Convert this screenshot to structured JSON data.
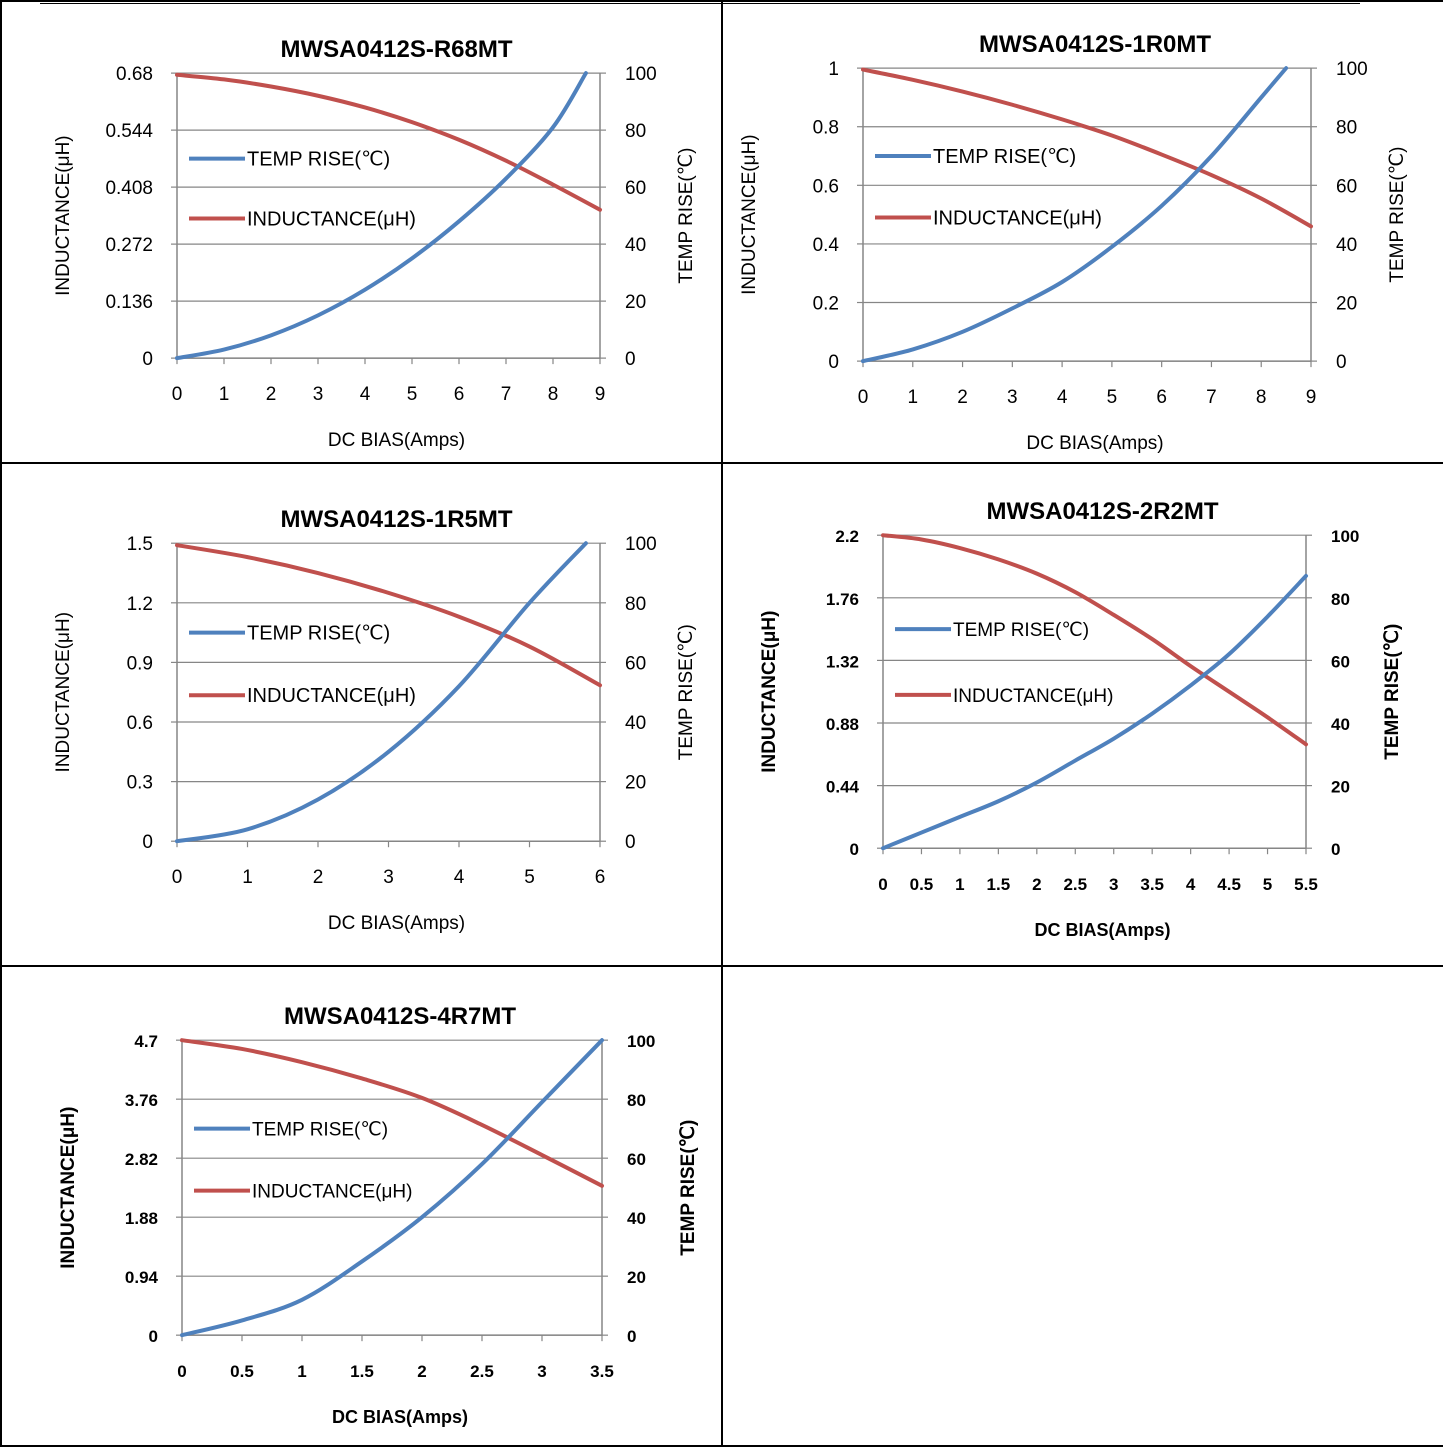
{
  "charts": [
    {
      "title": "MWSA0412S-R68MT",
      "xlabel": "DC  BIAS(Amps)",
      "ylabel_left": "INDUCTANCE(μH)",
      "ylabel_right": "TEMP RISE(℃)",
      "bold_axis_labels": false,
      "x_ticks": [
        "0",
        "1",
        "2",
        "3",
        "4",
        "5",
        "6",
        "7",
        "8",
        "9"
      ],
      "x_range": [
        0,
        9
      ],
      "y_left_ticks": [
        "0",
        "0.136",
        "0.272",
        "0.408",
        "0.544",
        "0.68"
      ],
      "y_left_range": [
        0,
        0.68
      ],
      "y_right_ticks": [
        "0",
        "20",
        "40",
        "60",
        "80",
        "100"
      ],
      "y_right_range": [
        0,
        100
      ],
      "legend": [
        {
          "label": "TEMP RISE(℃)",
          "color": "#4f81bd"
        },
        {
          "label": "INDUCTANCE(μH)",
          "color": "#c0504d"
        }
      ]
    },
    {
      "title": "MWSA0412S-1R0MT",
      "xlabel": "DC  BIAS(Amps)",
      "ylabel_left": "INDUCTANCE(μH)",
      "ylabel_right": "TEMP RISE(℃)",
      "bold_axis_labels": false,
      "x_ticks": [
        "0",
        "1",
        "2",
        "3",
        "4",
        "5",
        "6",
        "7",
        "8",
        "9"
      ],
      "x_range": [
        0,
        9
      ],
      "y_left_ticks": [
        "0",
        "0.2",
        "0.4",
        "0.6",
        "0.8",
        "1"
      ],
      "y_left_range": [
        0,
        1
      ],
      "y_right_ticks": [
        "0",
        "20",
        "40",
        "60",
        "80",
        "100"
      ],
      "y_right_range": [
        0,
        100
      ],
      "legend": [
        {
          "label": "TEMP RISE(℃)",
          "color": "#4f81bd"
        },
        {
          "label": "INDUCTANCE(μH)",
          "color": "#c0504d"
        }
      ]
    },
    {
      "title": "MWSA0412S-1R5MT",
      "xlabel": "DC  BIAS(Amps)",
      "ylabel_left": "INDUCTANCE(μH)",
      "ylabel_right": "TEMP RISE(℃)",
      "bold_axis_labels": false,
      "x_ticks": [
        "0",
        "1",
        "2",
        "3",
        "4",
        "5",
        "6"
      ],
      "x_range": [
        0,
        6
      ],
      "y_left_ticks": [
        "0",
        "0.3",
        "0.6",
        "0.9",
        "1.2",
        "1.5"
      ],
      "y_left_range": [
        0,
        1.5
      ],
      "y_right_ticks": [
        "0",
        "20",
        "40",
        "60",
        "80",
        "100"
      ],
      "y_right_range": [
        0,
        100
      ],
      "legend": [
        {
          "label": "TEMP RISE(℃)",
          "color": "#4f81bd"
        },
        {
          "label": "INDUCTANCE(μH)",
          "color": "#c0504d"
        }
      ]
    },
    {
      "title": "MWSA0412S-2R2MT",
      "xlabel": "DC  BIAS(Amps)",
      "ylabel_left": "INDUCTANCE(μH)",
      "ylabel_right": "TEMP RISE(℃)",
      "bold_axis_labels": true,
      "x_ticks": [
        "0",
        "0.5",
        "1",
        "1.5",
        "2",
        "2.5",
        "3",
        "3.5",
        "4",
        "4.5",
        "5",
        "5.5"
      ],
      "x_range": [
        0,
        5.5
      ],
      "y_left_ticks": [
        "0",
        "0.44",
        "0.88",
        "1.32",
        "1.76",
        "2.2"
      ],
      "y_left_range": [
        0,
        2.2
      ],
      "y_right_ticks": [
        "0",
        "20",
        "40",
        "60",
        "80",
        "100"
      ],
      "y_right_range": [
        0,
        100
      ],
      "legend": [
        {
          "label": "TEMP RISE(℃)",
          "color": "#4f81bd"
        },
        {
          "label": "INDUCTANCE(μH)",
          "color": "#c0504d"
        }
      ]
    },
    {
      "title": "MWSA0412S-4R7MT",
      "xlabel": "DC  BIAS(Amps)",
      "ylabel_left": "INDUCTANCE(μH)",
      "ylabel_right": "TEMP RISE(℃)",
      "bold_axis_labels": true,
      "x_ticks": [
        "0",
        "0.5",
        "1",
        "1.5",
        "2",
        "2.5",
        "3",
        "3.5"
      ],
      "x_range": [
        0,
        3.5
      ],
      "y_left_ticks": [
        "0",
        "0.94",
        "1.88",
        "2.82",
        "3.76",
        "4.7"
      ],
      "y_left_range": [
        0,
        4.7
      ],
      "y_right_ticks": [
        "0",
        "20",
        "40",
        "60",
        "80",
        "100"
      ],
      "y_right_range": [
        0,
        100
      ],
      "legend": [
        {
          "label": "TEMP RISE(℃)",
          "color": "#4f81bd"
        },
        {
          "label": "INDUCTANCE(μH)",
          "color": "#c0504d"
        }
      ]
    }
  ],
  "chart_data": [
    {
      "type": "line",
      "title": "MWSA0412S-R68MT",
      "xlabel": "DC  BIAS(Amps)",
      "ylabel": "INDUCTANCE(μH)",
      "y2label": "TEMP RISE(℃)",
      "xlim": [
        0,
        9
      ],
      "ylim": [
        0,
        0.68
      ],
      "y2lim": [
        0,
        100
      ],
      "grid": true,
      "legend": "left",
      "series": [
        {
          "name": "TEMP RISE(℃)",
          "axis": "right",
          "color": "#4f81bd",
          "x": [
            0,
            1,
            2,
            3,
            4,
            5,
            6,
            7,
            8,
            8.7
          ],
          "y": [
            0,
            3,
            8,
            15,
            24,
            35,
            48,
            63,
            81,
            100
          ]
        },
        {
          "name": "INDUCTANCE(μH)",
          "axis": "left",
          "color": "#c0504d",
          "x": [
            0,
            1,
            2,
            3,
            4,
            5,
            6,
            7,
            8,
            9
          ],
          "y": [
            0.676,
            0.665,
            0.648,
            0.626,
            0.598,
            0.563,
            0.521,
            0.471,
            0.414,
            0.354
          ]
        }
      ]
    },
    {
      "type": "line",
      "title": "MWSA0412S-1R0MT",
      "xlabel": "DC  BIAS(Amps)",
      "ylabel": "INDUCTANCE(μH)",
      "y2label": "TEMP RISE(℃)",
      "xlim": [
        0,
        9
      ],
      "ylim": [
        0,
        1
      ],
      "y2lim": [
        0,
        100
      ],
      "grid": true,
      "legend": "left",
      "series": [
        {
          "name": "TEMP RISE(℃)",
          "axis": "right",
          "color": "#4f81bd",
          "x": [
            0,
            1,
            2,
            3,
            4,
            5,
            6,
            7,
            8,
            8.5
          ],
          "y": [
            0,
            4,
            10,
            18,
            27,
            39,
            53,
            70,
            90,
            100
          ]
        },
        {
          "name": "INDUCTANCE(μH)",
          "axis": "left",
          "color": "#c0504d",
          "x": [
            0,
            1,
            2,
            3,
            4,
            5,
            6,
            7,
            8,
            9
          ],
          "y": [
            0.995,
            0.96,
            0.92,
            0.875,
            0.825,
            0.77,
            0.705,
            0.635,
            0.555,
            0.46
          ]
        }
      ]
    },
    {
      "type": "line",
      "title": "MWSA0412S-1R5MT",
      "xlabel": "DC  BIAS(Amps)",
      "ylabel": "INDUCTANCE(μH)",
      "y2label": "TEMP RISE(℃)",
      "xlim": [
        0,
        6
      ],
      "ylim": [
        0,
        1.5
      ],
      "y2lim": [
        0,
        100
      ],
      "grid": true,
      "legend": "left",
      "series": [
        {
          "name": "TEMP RISE(℃)",
          "axis": "right",
          "color": "#4f81bd",
          "x": [
            0,
            1,
            2,
            3,
            4,
            5,
            5.8
          ],
          "y": [
            0,
            4,
            14,
            30,
            52,
            80,
            100
          ]
        },
        {
          "name": "INDUCTANCE(μH)",
          "axis": "left",
          "color": "#c0504d",
          "x": [
            0,
            1,
            2,
            3,
            4,
            5,
            6
          ],
          "y": [
            1.49,
            1.43,
            1.35,
            1.25,
            1.13,
            0.98,
            0.785
          ]
        }
      ]
    },
    {
      "type": "line",
      "title": "MWSA0412S-2R2MT",
      "xlabel": "DC  BIAS(Amps)",
      "ylabel": "INDUCTANCE(μH)",
      "y2label": "TEMP RISE(℃)",
      "xlim": [
        0,
        5.5
      ],
      "ylim": [
        0,
        2.2
      ],
      "y2lim": [
        0,
        100
      ],
      "grid": true,
      "legend": "left",
      "series": [
        {
          "name": "TEMP RISE(℃)",
          "axis": "right",
          "color": "#4f81bd",
          "x": [
            0,
            0.5,
            1,
            1.5,
            2,
            2.5,
            3,
            3.5,
            4,
            4.5,
            5,
            5.5
          ],
          "y": [
            0,
            5,
            10,
            15,
            21,
            28,
            35,
            43,
            52,
            62,
            74,
            87
          ]
        },
        {
          "name": "INDUCTANCE(μH)",
          "axis": "left",
          "color": "#c0504d",
          "x": [
            0,
            0.5,
            1,
            1.5,
            2,
            2.5,
            3,
            3.5,
            4,
            4.5,
            5,
            5.5
          ],
          "y": [
            2.2,
            2.17,
            2.11,
            2.03,
            1.93,
            1.8,
            1.64,
            1.47,
            1.28,
            1.1,
            0.92,
            0.73
          ]
        }
      ]
    },
    {
      "type": "line",
      "title": "MWSA0412S-4R7MT",
      "xlabel": "DC  BIAS(Amps)",
      "ylabel": "INDUCTANCE(μH)",
      "y2label": "TEMP RISE(℃)",
      "xlim": [
        0,
        3.5
      ],
      "ylim": [
        0,
        4.7
      ],
      "y2lim": [
        0,
        100
      ],
      "grid": true,
      "legend": "left",
      "series": [
        {
          "name": "TEMP RISE(℃)",
          "axis": "right",
          "color": "#4f81bd",
          "x": [
            0,
            0.5,
            1,
            1.5,
            2,
            2.5,
            3,
            3.5
          ],
          "y": [
            0,
            5,
            12,
            25,
            40,
            58,
            79,
            100
          ]
        },
        {
          "name": "INDUCTANCE(μH)",
          "axis": "left",
          "color": "#c0504d",
          "x": [
            0,
            0.5,
            1,
            1.5,
            2,
            2.5,
            3,
            3.5
          ],
          "y": [
            4.7,
            4.56,
            4.35,
            4.09,
            3.78,
            3.35,
            2.87,
            2.38
          ]
        }
      ]
    }
  ]
}
